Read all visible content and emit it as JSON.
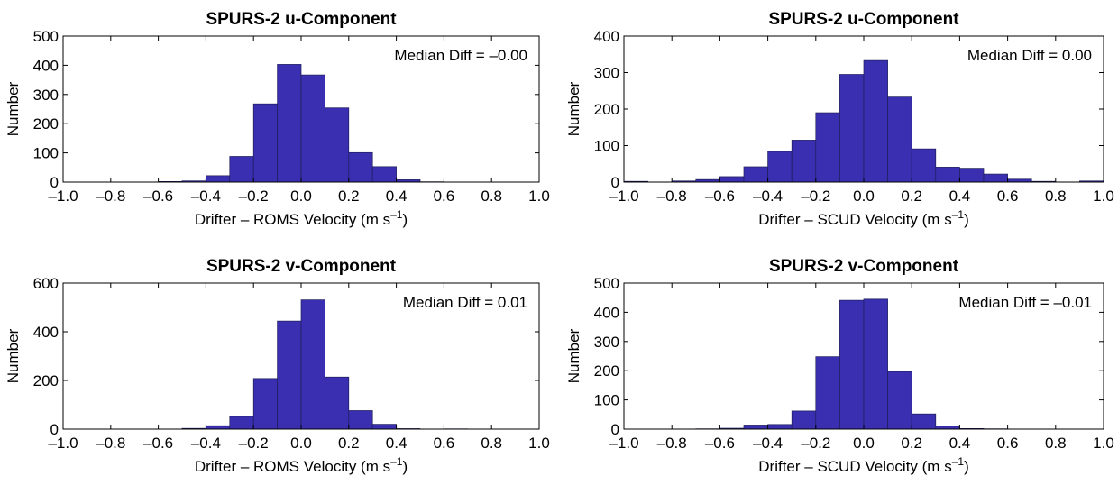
{
  "chart_data": [
    {
      "type": "bar",
      "title": "SPURS-2 u-Component",
      "xlabel": "Drifter – ROMS Velocity (m s",
      "xlabel_sup": "–1",
      "xlabel_close": ")",
      "ylabel": "Number",
      "annotation": "Median Diff = –0.00",
      "xlim": [
        -1.0,
        1.0
      ],
      "ylim": [
        0,
        500
      ],
      "bin_width": 0.1,
      "bin_centers": [
        -0.95,
        -0.85,
        -0.75,
        -0.65,
        -0.55,
        -0.45,
        -0.35,
        -0.25,
        -0.15,
        -0.05,
        0.05,
        0.15,
        0.25,
        0.35,
        0.45,
        0.55,
        0.65,
        0.75,
        0.85,
        0.95
      ],
      "values": [
        0,
        0,
        0,
        0,
        2,
        4,
        22,
        88,
        268,
        403,
        367,
        254,
        101,
        53,
        8,
        1,
        0,
        0,
        0,
        0
      ],
      "xticks": [
        -1.0,
        -0.8,
        -0.6,
        -0.4,
        -0.2,
        0.0,
        0.2,
        0.4,
        0.6,
        0.8,
        1.0
      ],
      "xtick_labels": [
        "–1.0",
        "–0.8",
        "–0.6",
        "–0.4",
        "–0.2",
        "0.0",
        "0.2",
        "0.4",
        "0.6",
        "0.8",
        "1.0"
      ],
      "yticks": [
        0,
        100,
        200,
        300,
        400,
        500
      ],
      "ytick_labels": [
        "0",
        "100",
        "200",
        "300",
        "400",
        "500"
      ],
      "bar_color": "#3a2fb0",
      "grid": false
    },
    {
      "type": "bar",
      "title": "SPURS-2 u-Component",
      "xlabel": "Drifter – SCUD Velocity (m s",
      "xlabel_sup": "–1",
      "xlabel_close": ")",
      "ylabel": "Number",
      "annotation": "Median Diff = 0.00",
      "xlim": [
        -1.0,
        1.0
      ],
      "ylim": [
        0,
        400
      ],
      "bin_width": 0.1,
      "bin_centers": [
        -0.95,
        -0.85,
        -0.75,
        -0.65,
        -0.55,
        -0.45,
        -0.35,
        -0.25,
        -0.15,
        -0.05,
        0.05,
        0.15,
        0.25,
        0.35,
        0.45,
        0.55,
        0.65,
        0.75,
        0.85,
        0.95
      ],
      "values": [
        2,
        0,
        3,
        7,
        15,
        42,
        84,
        115,
        190,
        295,
        333,
        233,
        91,
        41,
        38,
        22,
        8,
        2,
        0,
        3
      ],
      "xticks": [
        -1.0,
        -0.8,
        -0.6,
        -0.4,
        -0.2,
        0.0,
        0.2,
        0.4,
        0.6,
        0.8,
        1.0
      ],
      "xtick_labels": [
        "–1.0",
        "–0.8",
        "–0.6",
        "–0.4",
        "–0.2",
        "0.0",
        "0.2",
        "0.4",
        "0.6",
        "0.8",
        "1.0"
      ],
      "yticks": [
        0,
        100,
        200,
        300,
        400
      ],
      "ytick_labels": [
        "0",
        "100",
        "200",
        "300",
        "400"
      ],
      "bar_color": "#3a2fb0",
      "grid": false
    },
    {
      "type": "bar",
      "title": "SPURS-2 v-Component",
      "xlabel": "Drifter – ROMS Velocity (m s",
      "xlabel_sup": "–1",
      "xlabel_close": ")",
      "ylabel": "Number",
      "annotation": "Median Diff = 0.01",
      "xlim": [
        -1.0,
        1.0
      ],
      "ylim": [
        0,
        600
      ],
      "bin_width": 0.1,
      "bin_centers": [
        -0.95,
        -0.85,
        -0.75,
        -0.65,
        -0.55,
        -0.45,
        -0.35,
        -0.25,
        -0.15,
        -0.05,
        0.05,
        0.15,
        0.25,
        0.35,
        0.45,
        0.55,
        0.65,
        0.75,
        0.85,
        0.95
      ],
      "values": [
        0,
        0,
        0,
        0,
        0,
        3,
        14,
        52,
        208,
        444,
        531,
        214,
        76,
        20,
        2,
        0,
        1,
        0,
        0,
        0
      ],
      "xticks": [
        -1.0,
        -0.8,
        -0.6,
        -0.4,
        -0.2,
        0.0,
        0.2,
        0.4,
        0.6,
        0.8,
        1.0
      ],
      "xtick_labels": [
        "–1.0",
        "–0.8",
        "–0.6",
        "–0.4",
        "–0.2",
        "0.0",
        "0.2",
        "0.4",
        "0.6",
        "0.8",
        "1.0"
      ],
      "yticks": [
        0,
        200,
        400,
        600
      ],
      "ytick_labels": [
        "0",
        "200",
        "400",
        "600"
      ],
      "bar_color": "#3a2fb0",
      "grid": false
    },
    {
      "type": "bar",
      "title": "SPURS-2 v-Component",
      "xlabel": "Drifter – SCUD Velocity (m s",
      "xlabel_sup": "–1",
      "xlabel_close": ")",
      "ylabel": "Number",
      "annotation": "Median Diff = –0.01",
      "xlim": [
        -1.0,
        1.0
      ],
      "ylim": [
        0,
        500
      ],
      "bin_width": 0.1,
      "bin_centers": [
        -0.95,
        -0.85,
        -0.75,
        -0.65,
        -0.55,
        -0.45,
        -0.35,
        -0.25,
        -0.15,
        -0.05,
        0.05,
        0.15,
        0.25,
        0.35,
        0.45,
        0.55,
        0.65,
        0.75,
        0.85,
        0.95
      ],
      "values": [
        0,
        0,
        0,
        1,
        3,
        14,
        16,
        62,
        248,
        441,
        445,
        197,
        52,
        10,
        2,
        1,
        0,
        0,
        0,
        0
      ],
      "xticks": [
        -1.0,
        -0.8,
        -0.6,
        -0.4,
        -0.2,
        0.0,
        0.2,
        0.4,
        0.6,
        0.8,
        1.0
      ],
      "xtick_labels": [
        "–1.0",
        "–0.8",
        "–0.6",
        "–0.4",
        "–0.2",
        "0.0",
        "0.2",
        "0.4",
        "0.6",
        "0.8",
        "1.0"
      ],
      "yticks": [
        0,
        100,
        200,
        300,
        400,
        500
      ],
      "ytick_labels": [
        "0",
        "100",
        "200",
        "300",
        "400",
        "500"
      ],
      "bar_color": "#3a2fb0",
      "grid": false
    }
  ]
}
